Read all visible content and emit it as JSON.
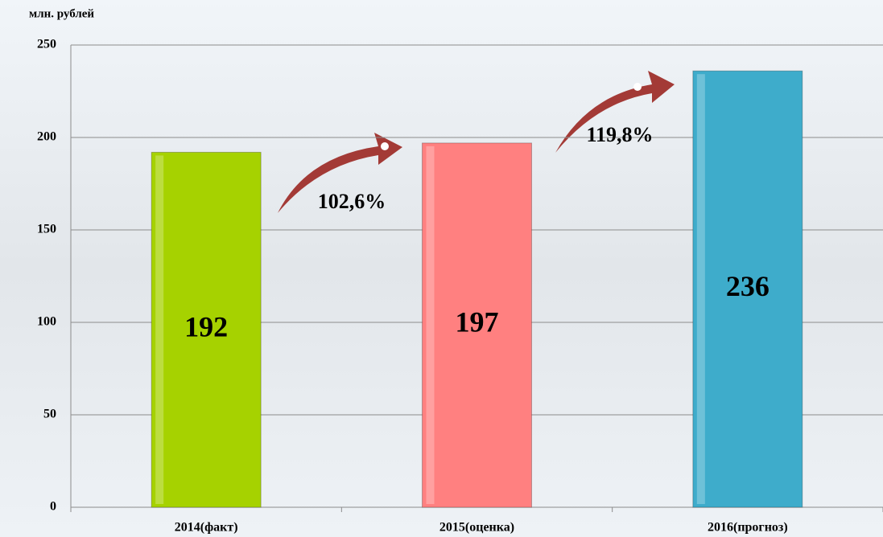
{
  "chart_data": {
    "type": "bar",
    "y_axis_label": "млн. рублей",
    "categories": [
      "2014(факт)",
      "2015(оценка)",
      "2016(прогноз)"
    ],
    "values": [
      192,
      197,
      236
    ],
    "colors": [
      "#a6d200",
      "#ff8080",
      "#3eaccb"
    ],
    "ylim": [
      0,
      250
    ],
    "yticks": [
      0,
      50,
      100,
      150,
      200,
      250
    ],
    "grid": true,
    "annotations": [
      "102,6%",
      "119,8%"
    ]
  }
}
